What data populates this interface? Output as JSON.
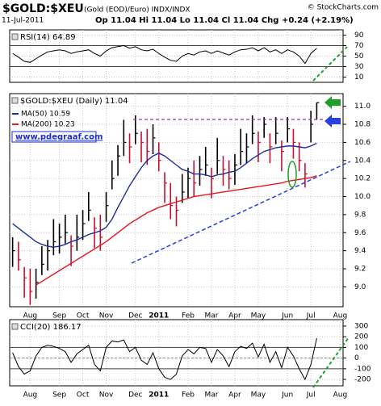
{
  "header": {
    "symbol": "$GOLD:$XEU",
    "description": "(Gold (EOD)/Euro) INDX/INDX",
    "date": "11-Jul-2011",
    "quote": "Op 11.04 Hi 11.04 Lo 11.04 Cl 11.04 Chg +0.24 (+2.19%)",
    "copyright": "© StockCharts.com"
  },
  "chart_data": [
    {
      "type": "line",
      "title": "RSI(14) 64.89",
      "color": "#000000",
      "values": [
        55,
        48,
        40,
        38,
        45,
        52,
        58,
        60,
        62,
        60,
        55,
        58,
        60,
        62,
        55,
        50,
        60,
        66,
        68,
        70,
        65,
        68,
        62,
        60,
        63,
        55,
        48,
        42,
        40,
        50,
        55,
        52,
        58,
        60,
        55,
        60,
        56,
        52,
        58,
        62,
        63,
        66,
        60,
        66,
        58,
        62,
        55,
        62,
        58,
        50,
        36,
        55,
        64.89,
        null,
        null,
        null,
        null
      ],
      "ylim": [
        0,
        100
      ],
      "yticks": [
        10,
        30,
        50,
        70,
        90
      ],
      "levels": [
        70,
        30
      ],
      "grid": true
    },
    {
      "type": "ohlc",
      "title": "$GOLD:$XEU (Daily) 11.04",
      "watermark": "www.pdegraaf.com",
      "categories": [
        null,
        null,
        null,
        "Aug",
        null,
        null,
        null,
        null,
        "Sep",
        null,
        null,
        null,
        "Oct",
        null,
        null,
        null,
        "Nov",
        null,
        null,
        null,
        null,
        "Dec",
        null,
        null,
        null,
        "2011",
        null,
        null,
        null,
        null,
        "Feb",
        null,
        null,
        null,
        "Mar",
        null,
        null,
        null,
        "Apr",
        null,
        null,
        null,
        "May",
        null,
        null,
        null,
        null,
        "Jun",
        null,
        null,
        null,
        "Jul",
        null,
        null,
        null,
        null,
        "Aug"
      ],
      "ohlc": {
        "high": [
          9.55,
          9.5,
          9.22,
          9.2,
          9.2,
          9.45,
          9.52,
          9.75,
          9.7,
          9.8,
          9.57,
          9.8,
          9.85,
          10.05,
          9.77,
          9.8,
          10.05,
          10.4,
          10.57,
          10.85,
          10.7,
          10.9,
          10.72,
          10.75,
          10.8,
          10.6,
          10.27,
          10.15,
          10.0,
          10.25,
          10.32,
          10.4,
          10.45,
          10.55,
          10.32,
          10.65,
          10.45,
          10.4,
          10.47,
          10.75,
          10.7,
          10.9,
          10.72,
          10.88,
          10.7,
          10.88,
          10.62,
          10.88,
          10.75,
          10.6,
          10.37,
          10.95,
          11.04,
          null,
          null,
          null,
          null
        ],
        "low": [
          9.22,
          9.18,
          8.88,
          8.8,
          8.87,
          9.13,
          9.18,
          9.35,
          9.37,
          9.48,
          9.23,
          9.4,
          9.52,
          9.73,
          9.43,
          9.4,
          9.72,
          10.08,
          10.23,
          10.45,
          10.37,
          10.58,
          10.38,
          10.35,
          10.47,
          10.28,
          9.93,
          9.75,
          9.67,
          9.93,
          9.98,
          10.0,
          10.12,
          10.23,
          9.98,
          10.25,
          10.12,
          10.08,
          10.13,
          10.35,
          10.37,
          10.58,
          10.38,
          10.65,
          10.37,
          10.58,
          10.28,
          10.6,
          10.42,
          10.28,
          10.1,
          10.6,
          10.85,
          null,
          null,
          null,
          null
        ],
        "close": [
          9.4,
          9.3,
          9.1,
          8.95,
          9.05,
          9.25,
          9.4,
          9.5,
          9.55,
          9.6,
          9.45,
          9.55,
          9.7,
          9.85,
          9.65,
          9.55,
          9.9,
          10.2,
          10.45,
          10.6,
          10.55,
          10.7,
          10.6,
          10.5,
          10.65,
          10.4,
          10.15,
          9.9,
          9.85,
          10.05,
          10.2,
          10.15,
          10.3,
          10.35,
          10.2,
          10.4,
          10.3,
          10.2,
          10.35,
          10.5,
          10.55,
          10.7,
          10.6,
          10.8,
          10.55,
          10.7,
          10.5,
          10.75,
          10.6,
          10.4,
          10.25,
          10.8,
          11.04,
          null,
          null,
          null,
          null
        ]
      },
      "up_color": "#000000",
      "down_color": "#c8102e",
      "series": [
        {
          "name": "MA(50) 10.59",
          "color": "#1f2d9c",
          "values": [
            9.7,
            9.65,
            9.6,
            9.55,
            9.5,
            9.47,
            9.45,
            9.44,
            9.45,
            9.47,
            9.5,
            9.52,
            9.55,
            9.58,
            9.6,
            9.62,
            9.66,
            9.75,
            9.88,
            10.0,
            10.12,
            10.22,
            10.32,
            10.4,
            10.45,
            10.48,
            10.45,
            10.4,
            10.35,
            10.3,
            10.28,
            10.25,
            10.25,
            10.24,
            10.22,
            10.24,
            10.25,
            10.27,
            10.28,
            10.32,
            10.37,
            10.42,
            10.46,
            10.5,
            10.52,
            10.54,
            10.55,
            10.56,
            10.56,
            10.55,
            10.54,
            10.56,
            10.59,
            null,
            null,
            null,
            null
          ]
        },
        {
          "name": "MA(200) 10.23",
          "color": "#e8141e",
          "values": [
            null,
            null,
            null,
            null,
            9.02,
            9.06,
            9.1,
            9.14,
            9.18,
            9.22,
            9.26,
            9.3,
            9.34,
            9.38,
            9.42,
            9.46,
            9.5,
            9.55,
            9.6,
            9.65,
            9.7,
            9.74,
            9.78,
            9.82,
            9.85,
            9.88,
            9.9,
            9.92,
            9.94,
            9.96,
            9.98,
            10.0,
            10.01,
            10.02,
            10.03,
            10.04,
            10.05,
            10.06,
            10.07,
            10.08,
            10.09,
            10.1,
            10.11,
            10.12,
            10.13,
            10.14,
            10.15,
            10.17,
            10.18,
            10.19,
            10.2,
            10.21,
            10.23,
            null,
            null,
            null,
            null
          ]
        }
      ],
      "ylim": [
        8.78,
        11.14
      ],
      "yticks": [
        {
          "value": 9,
          "label": "9.0"
        },
        9.2,
        9.4,
        9.6,
        9.8,
        {
          "value": 10,
          "label": "10.0"
        },
        10.2,
        10.4,
        10.6,
        10.8,
        {
          "value": 11,
          "label": "11.0"
        }
      ],
      "grid": true
    },
    {
      "type": "line",
      "title": "CCI(20) 186.17",
      "color": "#000000",
      "categories": [
        null,
        null,
        null,
        "Aug",
        null,
        null,
        null,
        null,
        "Sep",
        null,
        null,
        null,
        "Oct",
        null,
        null,
        null,
        "Nov",
        null,
        null,
        null,
        null,
        "Dec",
        null,
        null,
        null,
        "2011",
        null,
        null,
        null,
        null,
        "Feb",
        null,
        null,
        null,
        "Mar",
        null,
        null,
        null,
        "Apr",
        null,
        null,
        null,
        "May",
        null,
        null,
        null,
        null,
        "Jun",
        null,
        null,
        null,
        "Jul",
        null,
        null,
        null,
        null,
        "Aug"
      ],
      "values": [
        50,
        -80,
        -150,
        -120,
        20,
        100,
        120,
        110,
        90,
        60,
        -40,
        40,
        80,
        120,
        -60,
        -120,
        100,
        160,
        150,
        170,
        60,
        100,
        -20,
        -60,
        50,
        -100,
        -180,
        -200,
        -150,
        20,
        80,
        40,
        100,
        90,
        -40,
        80,
        20,
        -80,
        60,
        110,
        90,
        140,
        10,
        130,
        -40,
        60,
        -90,
        100,
        20,
        -100,
        -200,
        -60,
        186.17,
        null,
        null,
        null,
        null
      ],
      "ylim": [
        -260,
        360
      ],
      "yticks": [
        -200,
        -100,
        0,
        100,
        200,
        300
      ],
      "levels": [
        100,
        0,
        -100
      ],
      "grid": true
    }
  ]
}
